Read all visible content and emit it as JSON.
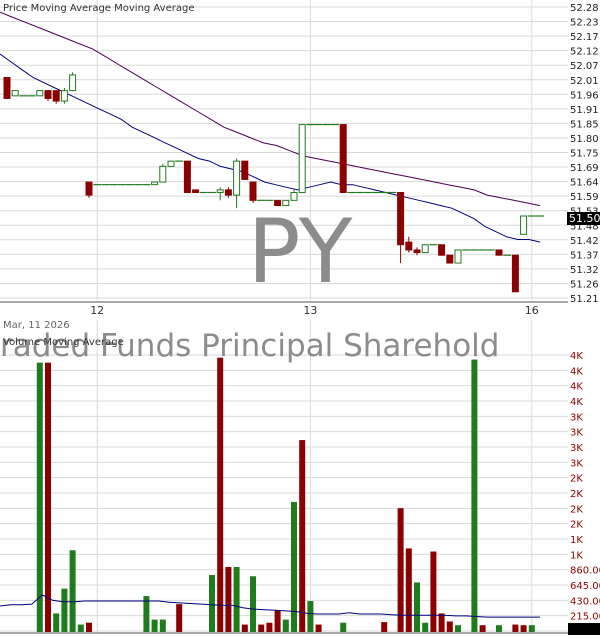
{
  "watermark": {
    "ticker": "PY",
    "name": "raded Funds Principal Sharehold"
  },
  "colors": {
    "up": "#1e7b1e",
    "down": "#8b0000",
    "ma_price": "#000080",
    "ma_long": "#4b0050",
    "ma_volume": "#000080",
    "grid": "#d9d9d9",
    "watermark": "#8c8c8c"
  },
  "chart_data": [
    {
      "type": "candlestick",
      "title": "Price Moving Average Moving Average",
      "ylim": [
        51.19,
        52.3
      ],
      "y_tick_labels": [
        "52.28",
        "52.23",
        "52.17",
        "52.12",
        "52.07",
        "52.01",
        "51.96",
        "51.91",
        "51.85",
        "51.80",
        "51.75",
        "51.69",
        "51.64",
        "51.59",
        "51.53",
        "51.48",
        "51.42",
        "51.37",
        "51.32",
        "51.26",
        "51.21"
      ],
      "x_tick_labels": [
        "12",
        "13",
        "16"
      ],
      "x_tick_positions": [
        11,
        37,
        64
      ],
      "last_price_label": "51.50",
      "last_price": 51.5,
      "candles": [
        {
          "o": 52.03,
          "c": 51.95,
          "h": 52.03,
          "l": 51.95
        },
        {
          "o": 51.96,
          "c": 51.98,
          "h": 51.98,
          "l": 51.96
        },
        {
          "o": 51.96,
          "c": 51.96,
          "h": 51.96,
          "l": 51.96
        },
        {
          "o": 51.96,
          "c": 51.96,
          "h": 51.96,
          "l": 51.96
        },
        {
          "o": 51.96,
          "c": 51.98,
          "h": 51.98,
          "l": 51.96
        },
        {
          "o": 51.98,
          "c": 51.95,
          "h": 51.98,
          "l": 51.94
        },
        {
          "o": 51.98,
          "c": 51.94,
          "h": 51.98,
          "l": 51.93
        },
        {
          "o": 51.94,
          "c": 51.98,
          "h": 51.99,
          "l": 51.93
        },
        {
          "o": 51.98,
          "c": 52.04,
          "h": 52.05,
          "l": 51.98
        },
        null,
        {
          "o": 51.63,
          "c": 51.58,
          "h": 51.63,
          "l": 51.57
        },
        {
          "o": 51.62,
          "c": 51.62,
          "h": 51.62,
          "l": 51.62
        },
        {
          "o": 51.62,
          "c": 51.62,
          "h": 51.62,
          "l": 51.62
        },
        {
          "o": 51.62,
          "c": 51.62,
          "h": 51.62,
          "l": 51.62
        },
        {
          "o": 51.62,
          "c": 51.62,
          "h": 51.62,
          "l": 51.62
        },
        {
          "o": 51.62,
          "c": 51.62,
          "h": 51.62,
          "l": 51.62
        },
        {
          "o": 51.62,
          "c": 51.62,
          "h": 51.62,
          "l": 51.62
        },
        {
          "o": 51.62,
          "c": 51.62,
          "h": 51.62,
          "l": 51.62
        },
        {
          "o": 51.62,
          "c": 51.63,
          "h": 51.63,
          "l": 51.62
        },
        {
          "o": 51.63,
          "c": 51.69,
          "h": 51.7,
          "l": 51.63
        },
        {
          "o": 51.69,
          "c": 51.71,
          "h": 51.71,
          "l": 51.69
        },
        {
          "o": 51.71,
          "c": 51.71,
          "h": 51.71,
          "l": 51.71
        },
        {
          "o": 51.71,
          "c": 51.59,
          "h": 51.71,
          "l": 51.59
        },
        {
          "o": 51.6,
          "c": 51.59,
          "h": 51.6,
          "l": 51.59
        },
        {
          "o": 51.59,
          "c": 51.59,
          "h": 51.59,
          "l": 51.59
        },
        {
          "o": 51.59,
          "c": 51.59,
          "h": 51.59,
          "l": 51.59
        },
        {
          "o": 51.59,
          "c": 51.6,
          "h": 51.61,
          "l": 51.56
        },
        {
          "o": 51.6,
          "c": 51.58,
          "h": 51.61,
          "l": 51.57
        },
        {
          "o": 51.58,
          "c": 51.71,
          "h": 51.72,
          "l": 51.53
        },
        {
          "o": 51.71,
          "c": 51.64,
          "h": 51.71,
          "l": 51.64
        },
        {
          "o": 51.63,
          "c": 51.56,
          "h": 51.63,
          "l": 51.55
        },
        {
          "o": 51.56,
          "c": 51.56,
          "h": 51.56,
          "l": 51.56
        },
        {
          "o": 51.56,
          "c": 51.56,
          "h": 51.56,
          "l": 51.56
        },
        {
          "o": 51.56,
          "c": 51.54,
          "h": 51.56,
          "l": 51.54
        },
        {
          "o": 51.54,
          "c": 51.56,
          "h": 51.56,
          "l": 51.54
        },
        {
          "o": 51.56,
          "c": 51.59,
          "h": 51.6,
          "l": 51.56
        },
        {
          "o": 51.59,
          "c": 51.85,
          "h": 51.85,
          "l": 51.59
        },
        {
          "o": 51.85,
          "c": 51.85,
          "h": 51.85,
          "l": 51.85
        },
        {
          "o": 51.85,
          "c": 51.85,
          "h": 51.85,
          "l": 51.85
        },
        {
          "o": 51.85,
          "c": 51.85,
          "h": 51.85,
          "l": 51.85
        },
        {
          "o": 51.85,
          "c": 51.85,
          "h": 51.85,
          "l": 51.85
        },
        {
          "o": 51.85,
          "c": 51.59,
          "h": 51.85,
          "l": 51.59
        },
        {
          "o": 51.59,
          "c": 51.59,
          "h": 51.59,
          "l": 51.59
        },
        {
          "o": 51.59,
          "c": 51.59,
          "h": 51.59,
          "l": 51.59
        },
        {
          "o": 51.59,
          "c": 51.59,
          "h": 51.59,
          "l": 51.59
        },
        {
          "o": 51.59,
          "c": 51.59,
          "h": 51.59,
          "l": 51.59
        },
        {
          "o": 51.59,
          "c": 51.59,
          "h": 51.59,
          "l": 51.59
        },
        {
          "o": 51.59,
          "c": 51.59,
          "h": 51.59,
          "l": 51.59
        },
        {
          "o": 51.59,
          "c": 51.39,
          "h": 51.59,
          "l": 51.32
        },
        {
          "o": 51.4,
          "c": 51.37,
          "h": 51.42,
          "l": 51.36
        },
        {
          "o": 51.37,
          "c": 51.36,
          "h": 51.38,
          "l": 51.35
        },
        {
          "o": 51.36,
          "c": 51.39,
          "h": 51.39,
          "l": 51.36
        },
        {
          "o": 51.39,
          "c": 51.39,
          "h": 51.39,
          "l": 51.39
        },
        {
          "o": 51.39,
          "c": 51.35,
          "h": 51.39,
          "l": 51.35
        },
        {
          "o": 51.35,
          "c": 51.32,
          "h": 51.35,
          "l": 51.32
        },
        {
          "o": 51.32,
          "c": 51.37,
          "h": 51.37,
          "l": 51.32
        },
        {
          "o": 51.37,
          "c": 51.37,
          "h": 51.37,
          "l": 51.37
        },
        {
          "o": 51.37,
          "c": 51.37,
          "h": 51.37,
          "l": 51.37
        },
        {
          "o": 51.37,
          "c": 51.37,
          "h": 51.37,
          "l": 51.37
        },
        {
          "o": 51.37,
          "c": 51.37,
          "h": 51.37,
          "l": 51.37
        },
        {
          "o": 51.37,
          "c": 51.35,
          "h": 51.37,
          "l": 51.35
        },
        {
          "o": 51.35,
          "c": 51.35,
          "h": 51.35,
          "l": 51.35
        },
        {
          "o": 51.35,
          "c": 51.21,
          "h": 51.35,
          "l": 51.21
        },
        {
          "o": 51.43,
          "c": 51.5,
          "h": 51.5,
          "l": 51.43
        },
        {
          "o": 51.5,
          "c": 51.5,
          "h": 51.5,
          "l": 51.5
        },
        {
          "o": 51.5,
          "c": 51.5,
          "h": 51.5,
          "l": 51.5
        }
      ],
      "series": [
        {
          "values": [
            52.12,
            52.09,
            52.06,
            52.03,
            52.01,
            51.99,
            51.97,
            51.95,
            51.93,
            51.91,
            51.89,
            51.87,
            51.84,
            51.82,
            51.8,
            51.78,
            51.76,
            51.74,
            51.72,
            51.71,
            51.69,
            51.68,
            51.67,
            51.65,
            51.63,
            51.62,
            51.61,
            51.6,
            51.61,
            51.62,
            51.63,
            51.62,
            51.62,
            51.61,
            51.6,
            51.59,
            51.58,
            51.57,
            51.56,
            51.55,
            51.54,
            51.53,
            51.51,
            51.49,
            51.46,
            51.44,
            51.42,
            51.41,
            51.41,
            51.4
          ]
        },
        {
          "values": [
            52.28,
            52.26,
            52.24,
            52.22,
            52.2,
            52.18,
            52.16,
            52.14,
            52.11,
            52.08,
            52.05,
            52.02,
            51.99,
            51.96,
            51.93,
            51.9,
            51.87,
            51.84,
            51.82,
            51.8,
            51.78,
            51.77,
            51.75,
            51.73,
            51.72,
            51.71,
            51.7,
            51.69,
            51.68,
            51.67,
            51.66,
            51.65,
            51.64,
            51.63,
            51.62,
            51.61,
            51.6,
            51.58,
            51.57,
            51.56,
            51.55,
            51.54
          ]
        }
      ]
    },
    {
      "type": "bar",
      "title": "Volume Moving Average",
      "date_label": "Mar, 11 2026",
      "ylim": [
        0,
        4700
      ],
      "y_tick_labels": [
        "4K",
        "4K",
        "4K",
        "4K",
        "3K",
        "3K",
        "3K",
        "3K",
        "2K",
        "2K",
        "2K",
        "2K",
        "1K",
        "1K",
        "860.00",
        "645.00",
        "430.00",
        "215.00",
        "0.00"
      ],
      "x_tick_positions": [
        11,
        37,
        64
      ],
      "volumes": [
        {
          "v": 0,
          "up": true
        },
        {
          "v": 0,
          "up": true
        },
        {
          "v": 0,
          "up": true
        },
        {
          "v": 0,
          "up": true
        },
        {
          "v": 4350,
          "up": true
        },
        {
          "v": 4350,
          "up": false
        },
        {
          "v": 300,
          "up": true
        },
        {
          "v": 700,
          "up": true
        },
        {
          "v": 1320,
          "up": true
        },
        {
          "v": 120,
          "up": true
        },
        {
          "v": 150,
          "up": false
        },
        {
          "v": 0,
          "up": true
        },
        {
          "v": 0,
          "up": true
        },
        {
          "v": 0,
          "up": true
        },
        {
          "v": 0,
          "up": true
        },
        {
          "v": 0,
          "up": true
        },
        {
          "v": 0,
          "up": true
        },
        {
          "v": 580,
          "up": true
        },
        {
          "v": 200,
          "up": true
        },
        {
          "v": 200,
          "up": true
        },
        {
          "v": 0,
          "up": true
        },
        {
          "v": 450,
          "up": false
        },
        {
          "v": 0,
          "up": true
        },
        {
          "v": 0,
          "up": true
        },
        {
          "v": 0,
          "up": true
        },
        {
          "v": 920,
          "up": true
        },
        {
          "v": 4430,
          "up": false
        },
        {
          "v": 1050,
          "up": false
        },
        {
          "v": 1050,
          "up": true
        },
        {
          "v": 120,
          "up": false
        },
        {
          "v": 900,
          "up": true
        },
        {
          "v": 120,
          "up": false
        },
        {
          "v": 150,
          "up": false
        },
        {
          "v": 350,
          "up": false
        },
        {
          "v": 200,
          "up": true
        },
        {
          "v": 2100,
          "up": true
        },
        {
          "v": 3100,
          "up": false
        },
        {
          "v": 500,
          "up": true
        },
        {
          "v": 120,
          "up": false
        },
        {
          "v": 0,
          "up": true
        },
        {
          "v": 0,
          "up": true
        },
        {
          "v": 150,
          "up": true
        },
        {
          "v": 0,
          "up": true
        },
        {
          "v": 0,
          "up": true
        },
        {
          "v": 0,
          "up": true
        },
        {
          "v": 0,
          "up": true
        },
        {
          "v": 160,
          "up": false
        },
        {
          "v": 0,
          "up": true
        },
        {
          "v": 2000,
          "up": false
        },
        {
          "v": 1350,
          "up": false
        },
        {
          "v": 800,
          "up": true
        },
        {
          "v": 150,
          "up": true
        },
        {
          "v": 1300,
          "up": false
        },
        {
          "v": 300,
          "up": false
        },
        {
          "v": 170,
          "up": false
        },
        {
          "v": 110,
          "up": true
        },
        {
          "v": 0,
          "up": true
        },
        {
          "v": 4400,
          "up": true
        },
        {
          "v": 110,
          "up": false
        },
        {
          "v": 0,
          "up": true
        },
        {
          "v": 110,
          "up": true
        },
        {
          "v": 0,
          "up": true
        },
        {
          "v": 120,
          "up": false
        },
        {
          "v": 110,
          "up": false
        },
        {
          "v": 110,
          "up": true
        },
        {
          "v": 0,
          "up": true
        }
      ],
      "series": [
        {
          "values": [
            420,
            440,
            440,
            450,
            600,
            510,
            490,
            490,
            500,
            500,
            500,
            500,
            500,
            500,
            500,
            500,
            480,
            470,
            460,
            450,
            440,
            430,
            430,
            390,
            370,
            360,
            350,
            340,
            330,
            300,
            290,
            290,
            290,
            310,
            290,
            290,
            290,
            280,
            270,
            270,
            270,
            270,
            270,
            260,
            260,
            250,
            240,
            240,
            240,
            240,
            240,
            240
          ]
        }
      ]
    }
  ]
}
